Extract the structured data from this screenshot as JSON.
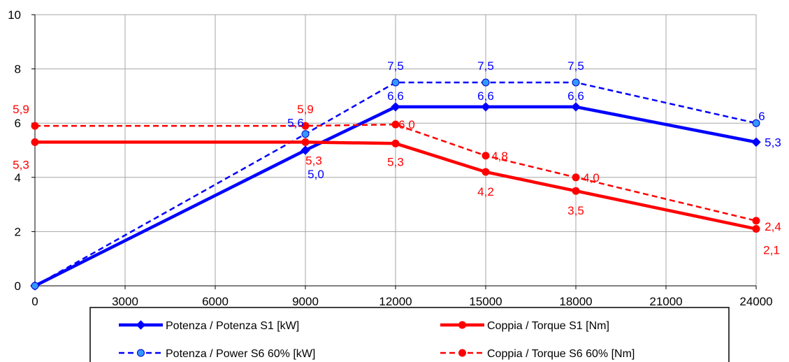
{
  "chart_data": {
    "type": "line",
    "title": "",
    "xlabel": "",
    "ylabel": "",
    "xlim": [
      0,
      24000
    ],
    "ylim": [
      0,
      10
    ],
    "xticks": [
      "0",
      "3000",
      "6000",
      "9000",
      "12000",
      "15000",
      "18000",
      "21000",
      "24000"
    ],
    "yticks": [
      "0",
      "2",
      "4",
      "6",
      "8",
      "10"
    ],
    "grid": true,
    "legend_position": "bottom",
    "series": [
      {
        "name": "Potenza / Potenza S1 [kW]",
        "color": "#0000ff",
        "dash": "solid",
        "marker": "diamond",
        "points": [
          {
            "x": 0,
            "y": 0,
            "label": ""
          },
          {
            "x": 9000,
            "y": 5.0,
            "label": "5,0"
          },
          {
            "x": 12000,
            "y": 6.6,
            "label": "6,6"
          },
          {
            "x": 15000,
            "y": 6.6,
            "label": "6,6"
          },
          {
            "x": 18000,
            "y": 6.6,
            "label": "6,6"
          },
          {
            "x": 24000,
            "y": 5.3,
            "label": "5,3"
          }
        ]
      },
      {
        "name": "Potenza / Power S6 60% [kW]",
        "color": "#0000ff",
        "dash": "dashed",
        "marker": "circle",
        "points": [
          {
            "x": 0,
            "y": 0,
            "label": ""
          },
          {
            "x": 9000,
            "y": 5.6,
            "label": "5,6"
          },
          {
            "x": 12000,
            "y": 7.5,
            "label": "7,5"
          },
          {
            "x": 15000,
            "y": 7.5,
            "label": "7,5"
          },
          {
            "x": 18000,
            "y": 7.5,
            "label": "7,5"
          },
          {
            "x": 24000,
            "y": 6.0,
            "label": "6"
          }
        ]
      },
      {
        "name": "Coppia / Torque S1 [Nm]",
        "color": "#ff0000",
        "dash": "solid",
        "marker": "circle",
        "points": [
          {
            "x": 0,
            "y": 5.3,
            "label": "5,3"
          },
          {
            "x": 9000,
            "y": 5.3,
            "label": "5,3"
          },
          {
            "x": 12000,
            "y": 5.25,
            "label": "5,3"
          },
          {
            "x": 15000,
            "y": 4.2,
            "label": "4,2"
          },
          {
            "x": 18000,
            "y": 3.5,
            "label": "3,5"
          },
          {
            "x": 24000,
            "y": 2.1,
            "label": "2,1"
          }
        ]
      },
      {
        "name": "Coppia / Torque S6 60% [Nm]",
        "color": "#ff0000",
        "dash": "dashed",
        "marker": "circle",
        "points": [
          {
            "x": 0,
            "y": 5.9,
            "label": "5,9"
          },
          {
            "x": 9000,
            "y": 5.9,
            "label": "5,9"
          },
          {
            "x": 12000,
            "y": 5.95,
            "label": "6,0"
          },
          {
            "x": 15000,
            "y": 4.8,
            "label": "4,8"
          },
          {
            "x": 18000,
            "y": 4.0,
            "label": "4,0"
          },
          {
            "x": 24000,
            "y": 2.4,
            "label": "2,4"
          }
        ]
      }
    ]
  }
}
